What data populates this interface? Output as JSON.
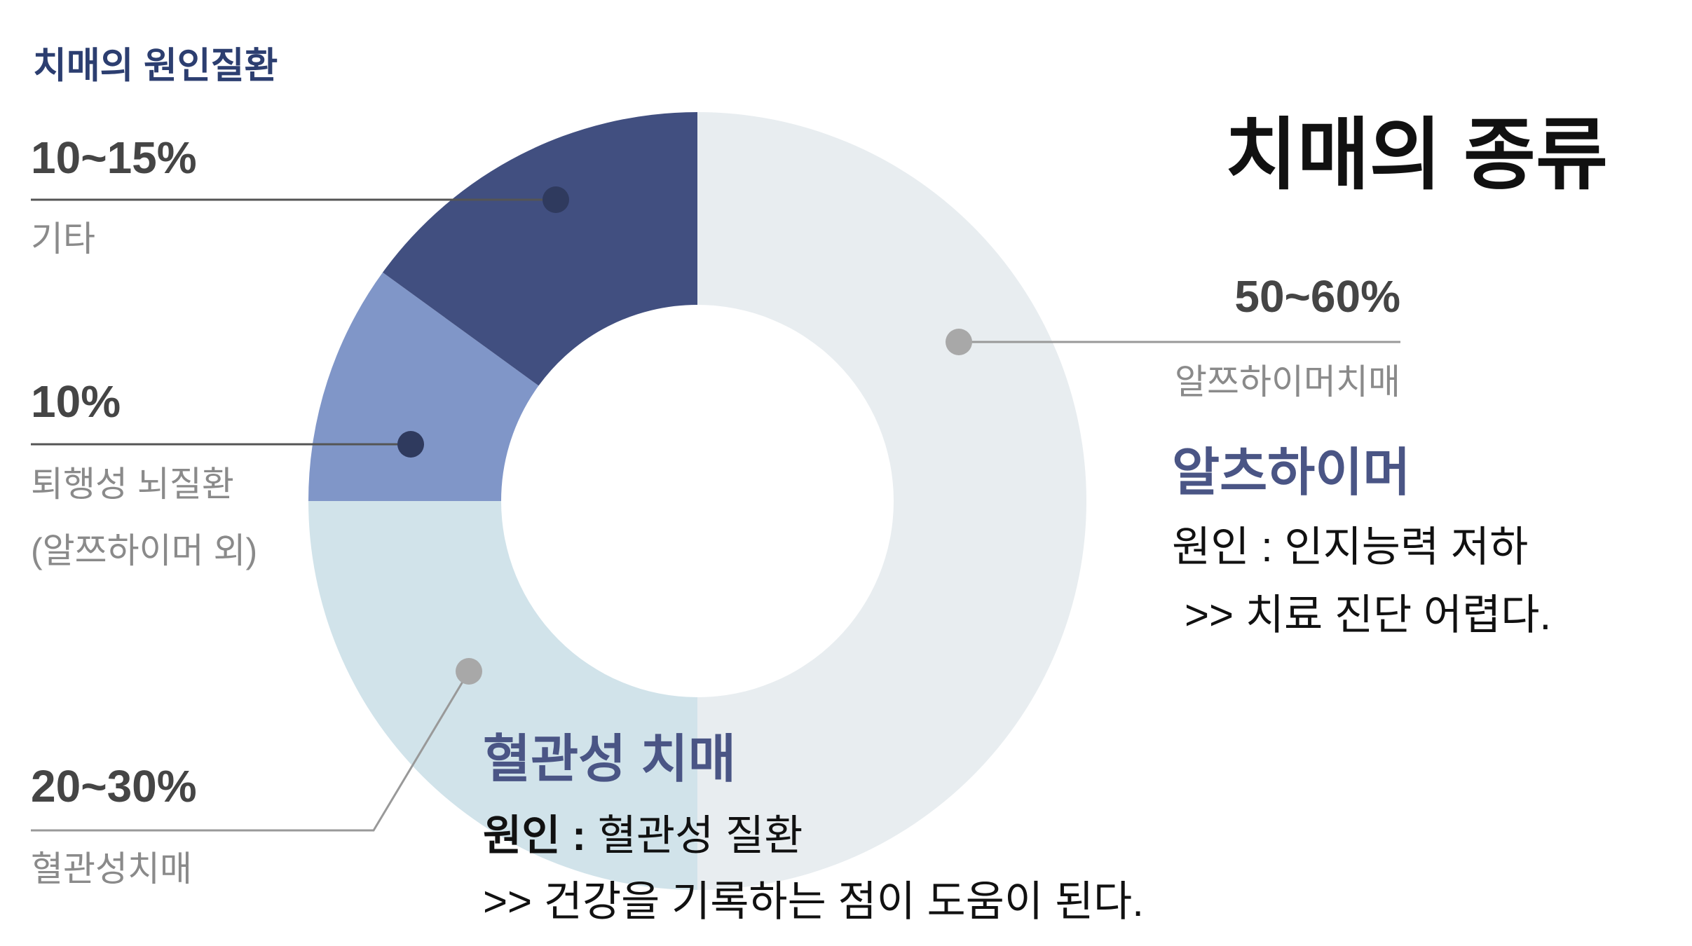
{
  "chart_data": {
    "type": "donut",
    "title": "치매의 원인질환",
    "categories": [
      "알쯔하이머치매",
      "혈관성치매",
      "퇴행성 뇌질환",
      "기타"
    ],
    "category_sublabels": [
      null,
      null,
      "(알쯔하이머 외)",
      null
    ],
    "values": [
      50,
      25,
      10,
      15
    ],
    "value_labels": [
      "50~60%",
      "20~30%",
      "10%",
      "10~15%"
    ],
    "colors": [
      "#e8edf0",
      "#d1e3ea",
      "#8096c8",
      "#414f80"
    ]
  },
  "slide": {
    "title": "치매의 종류",
    "alzheimer": {
      "heading": "알츠하이머",
      "cause": "원인 : 인지능력 저하",
      "note": ">> 치료 진단 어렵다."
    },
    "vascular": {
      "heading": "혈관성 치매",
      "cause_label": "원인 :",
      "cause_text": "혈관성 질환",
      "note": ">> 건강을 기록하는 점이 도움이 된다."
    }
  }
}
